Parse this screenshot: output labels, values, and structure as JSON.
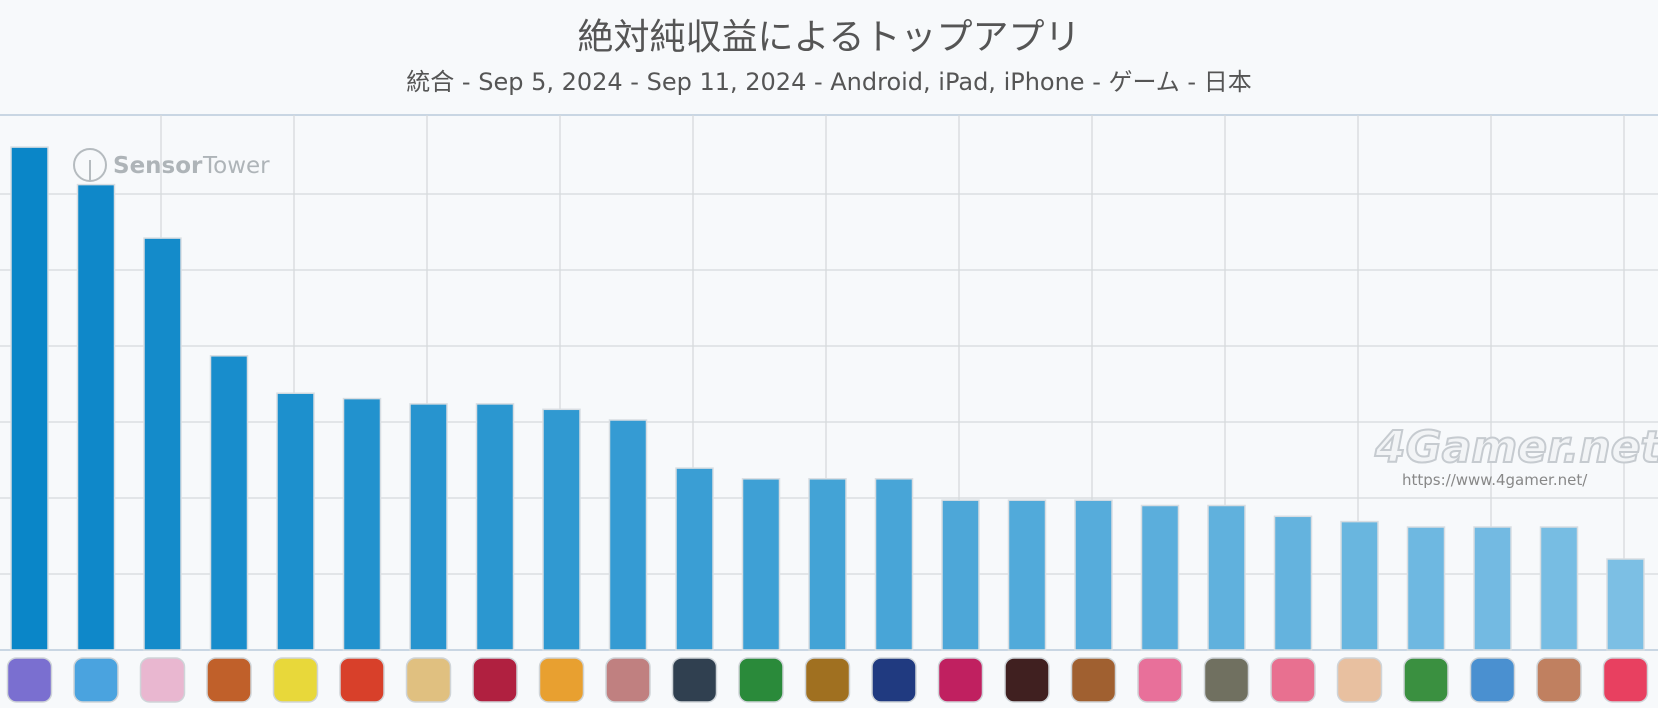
{
  "chart_data": {
    "type": "bar",
    "title": "絶対純収益によるトップアプリ",
    "subtitle": "統合 - Sep 5, 2024 - Sep 11, 2024 - Android, iPad, iPhone - ゲーム - 日本",
    "ylim": [
      0,
      100
    ],
    "grid": true,
    "values": [
      94,
      87,
      77,
      55,
      48,
      47,
      46,
      46,
      45,
      43,
      34,
      32,
      32,
      32,
      28,
      28,
      28,
      27,
      27,
      25,
      24,
      23,
      23,
      23,
      17
    ],
    "bar_color_start": "#0a86c8",
    "bar_color_end": "#7cbfe4"
  },
  "watermarks": {
    "sensor_tower_a": "Sensor",
    "sensor_tower_b": "Tower",
    "site": "4Gamer.net",
    "site_url": "https://www.4gamer.net/"
  }
}
